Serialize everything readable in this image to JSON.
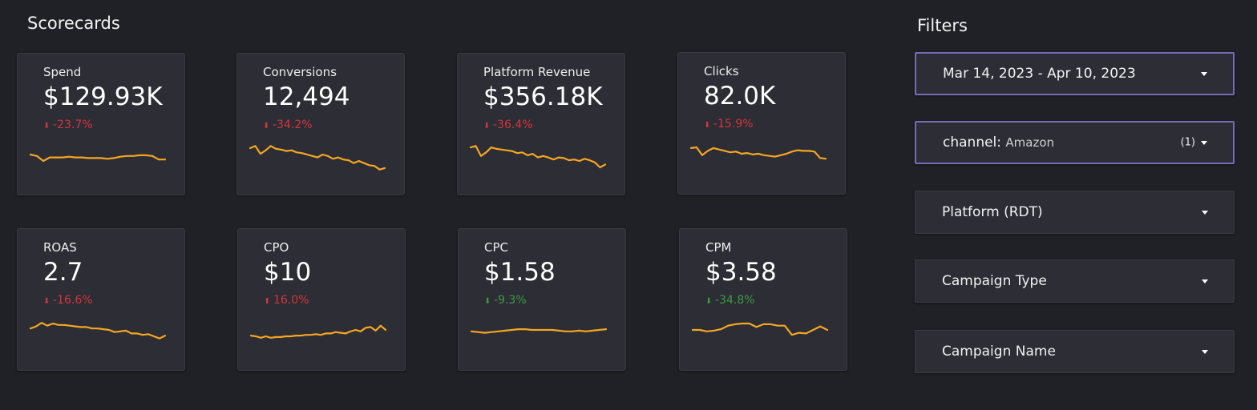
{
  "scorecards": {
    "title": "Scorecards",
    "accent_color": "#f5a623",
    "negative_color": "#d3363b",
    "positive_color": "#3d9a40",
    "cards": [
      {
        "label": "Spend",
        "value": "$129.93K",
        "delta": "-23.7%",
        "direction": "down",
        "sentiment": "negative",
        "trend": [
          52,
          50,
          43,
          48,
          48,
          48,
          49,
          48,
          48,
          47,
          47,
          47,
          46,
          47,
          49,
          50,
          50,
          51,
          51,
          50,
          45,
          45
        ]
      },
      {
        "label": "Conversions",
        "value": "12,494",
        "delta": "-34.2%",
        "direction": "down",
        "sentiment": "negative",
        "trend": [
          61,
          64,
          53,
          58,
          64,
          60,
          59,
          57,
          58,
          55,
          54,
          52,
          50,
          48,
          52,
          50,
          46,
          48,
          45,
          44,
          40,
          43,
          40,
          37,
          36,
          31,
          33
        ]
      },
      {
        "label": "Platform Revenue",
        "value": "$356.18K",
        "delta": "-36.4%",
        "direction": "down",
        "sentiment": "negative",
        "trend": [
          62,
          64,
          50,
          55,
          62,
          60,
          59,
          58,
          57,
          54,
          55,
          51,
          53,
          48,
          50,
          48,
          45,
          48,
          47,
          44,
          45,
          43,
          46,
          44,
          41,
          34,
          38
        ]
      },
      {
        "label": "Clicks",
        "value": "82.0K",
        "delta": "-15.9%",
        "direction": "down",
        "sentiment": "negative",
        "trend": [
          60,
          61,
          50,
          56,
          60,
          58,
          56,
          54,
          55,
          52,
          53,
          51,
          52,
          50,
          49,
          48,
          50,
          52,
          55,
          57,
          56,
          56,
          55,
          46,
          45
        ]
      },
      {
        "label": "ROAS",
        "value": "2.7",
        "delta": "-16.6%",
        "direction": "down",
        "sentiment": "negative",
        "trend": [
          54,
          57,
          62,
          58,
          61,
          59,
          59,
          58,
          57,
          56,
          56,
          54,
          54,
          53,
          52,
          49,
          50,
          51,
          47,
          47,
          45,
          46,
          43,
          40,
          44
        ]
      },
      {
        "label": "CPO",
        "value": "$10",
        "delta": "16.0%",
        "direction": "up",
        "sentiment": "negative",
        "trend": [
          44,
          43,
          41,
          43,
          41,
          42,
          42,
          43,
          43,
          44,
          44,
          45,
          45,
          46,
          45,
          47,
          47,
          49,
          48,
          47,
          50,
          52,
          50,
          55,
          56,
          51,
          58,
          52
        ]
      },
      {
        "label": "CPC",
        "value": "$1.58",
        "delta": "-9.3%",
        "direction": "down",
        "sentiment": "positive",
        "trend": [
          50,
          49,
          48,
          49,
          50,
          51,
          52,
          53,
          53,
          52,
          52,
          52,
          52,
          51,
          50,
          50,
          51,
          50,
          51,
          52,
          53
        ]
      },
      {
        "label": "CPM",
        "value": "$3.58",
        "delta": "-34.8%",
        "direction": "down",
        "sentiment": "positive",
        "trend": [
          52,
          52,
          50,
          51,
          53,
          58,
          60,
          61,
          61,
          56,
          60,
          60,
          58,
          58,
          45,
          48,
          47,
          52,
          57,
          52
        ]
      }
    ]
  },
  "filters": {
    "title": "Filters",
    "items": [
      {
        "label": "Mar 14, 2023 - Apr 10, 2023",
        "sub": "",
        "count": "",
        "active": true
      },
      {
        "label": "channel:",
        "sub": "Amazon",
        "count": "(1)",
        "active": true
      },
      {
        "label": "Platform (RDT)",
        "sub": "",
        "count": "",
        "active": false
      },
      {
        "label": "Campaign Type",
        "sub": "",
        "count": "",
        "active": false
      },
      {
        "label": "Campaign Name",
        "sub": "",
        "count": "",
        "active": false
      }
    ]
  }
}
